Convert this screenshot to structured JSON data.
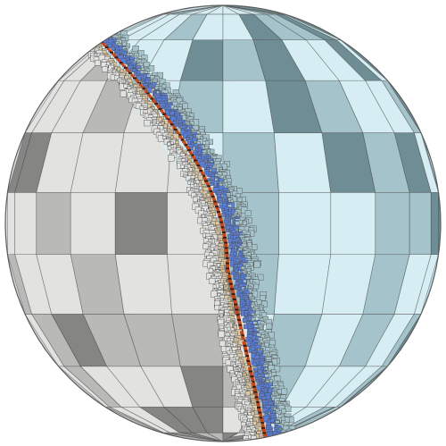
{
  "scene": {
    "subject": "sphere-mesh",
    "colors": {
      "background": "#ffffff",
      "left_face_light": "#e2e2e0",
      "left_face_mid": "#b9b9b7",
      "left_face_dark": "#858583",
      "right_face_light": "#d6eef3",
      "right_face_mid": "#a5c3ca",
      "right_face_dark": "#6e8d94",
      "interface_hot": "#c4471c",
      "interface_dark": "#3a1a0e",
      "interface_cool": "#5b7fd6",
      "grid_line": "#4a4a4a"
    }
  }
}
